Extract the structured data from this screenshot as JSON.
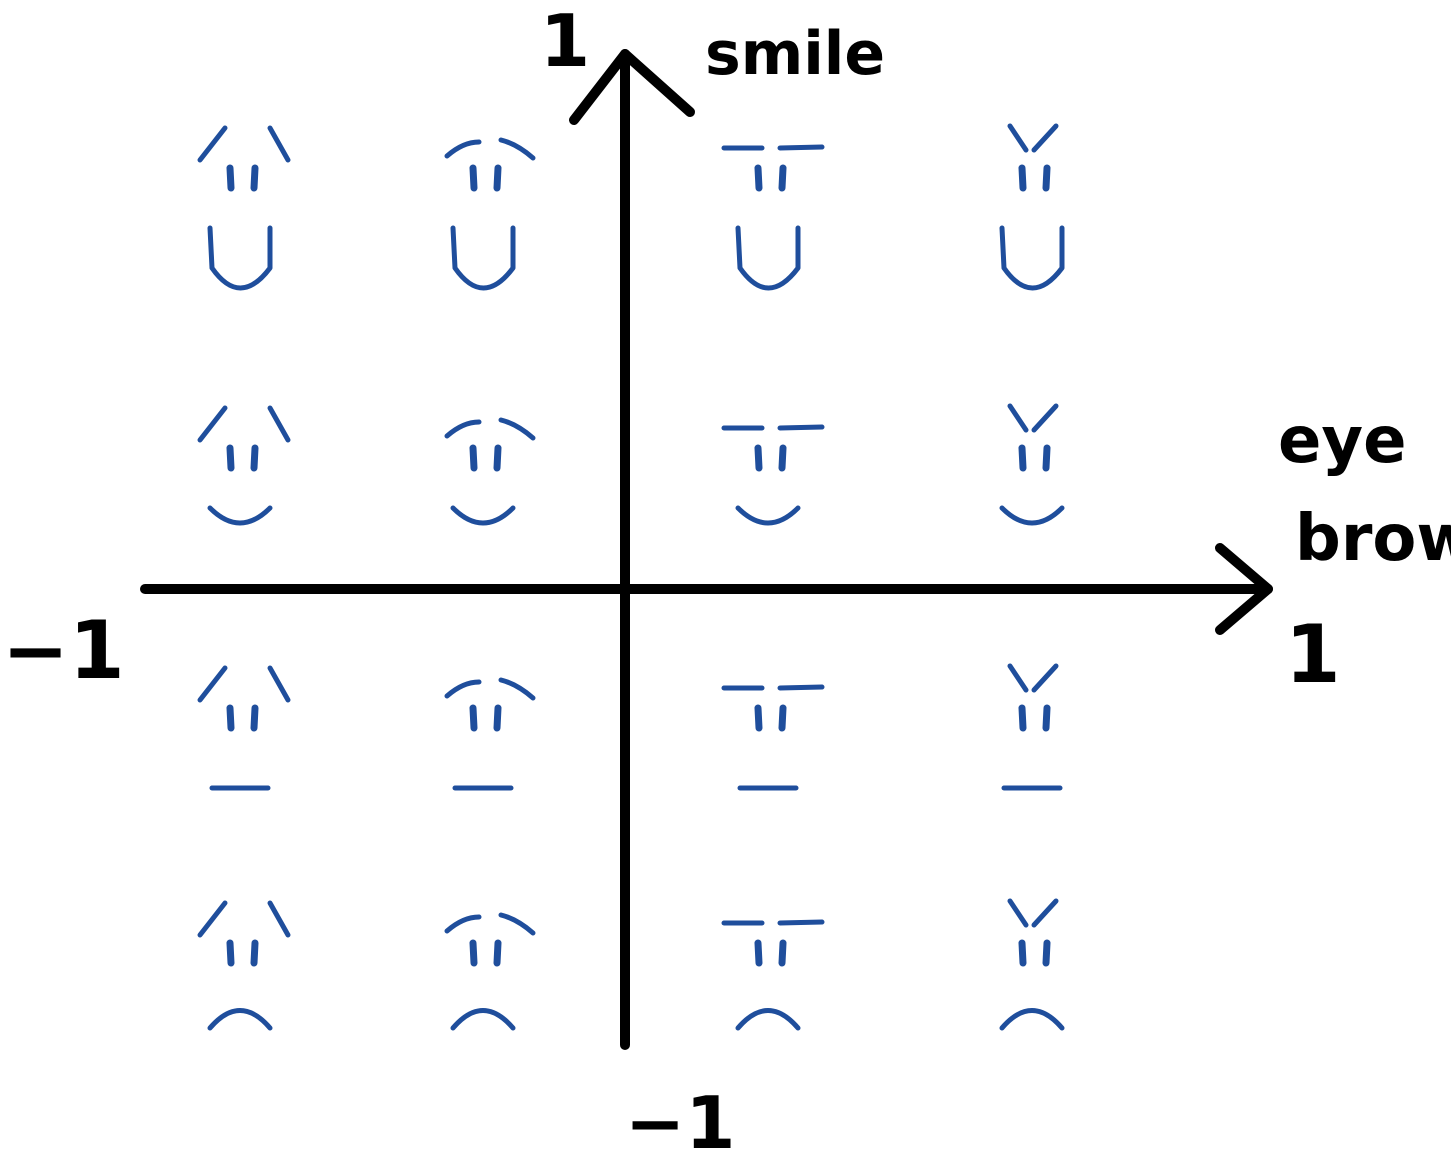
{
  "colors": {
    "axis": "#000000",
    "face": "#1f4e9c",
    "background": "#ffffff"
  },
  "y_axis": {
    "title": "smile",
    "max_label": "1",
    "min_label": "−1"
  },
  "x_axis": {
    "title_line1": "eye",
    "title_line2": "brow",
    "max_label": "1",
    "min_label": "−1"
  },
  "faces": [
    {
      "eyebrow": -1.0,
      "smile": 1.0
    },
    {
      "eyebrow": -0.5,
      "smile": 1.0
    },
    {
      "eyebrow": 0.5,
      "smile": 1.0
    },
    {
      "eyebrow": 1.0,
      "smile": 1.0
    },
    {
      "eyebrow": -1.0,
      "smile": 0.5
    },
    {
      "eyebrow": -0.5,
      "smile": 0.5
    },
    {
      "eyebrow": 0.5,
      "smile": 0.5
    },
    {
      "eyebrow": 1.0,
      "smile": 0.5
    },
    {
      "eyebrow": -1.0,
      "smile": 0.0
    },
    {
      "eyebrow": -0.5,
      "smile": 0.0
    },
    {
      "eyebrow": 0.5,
      "smile": 0.0
    },
    {
      "eyebrow": 1.0,
      "smile": 0.0
    },
    {
      "eyebrow": -1.0,
      "smile": -0.5
    },
    {
      "eyebrow": -0.5,
      "smile": -0.5
    },
    {
      "eyebrow": 0.5,
      "smile": -0.5
    },
    {
      "eyebrow": 1.0,
      "smile": -0.5
    }
  ]
}
